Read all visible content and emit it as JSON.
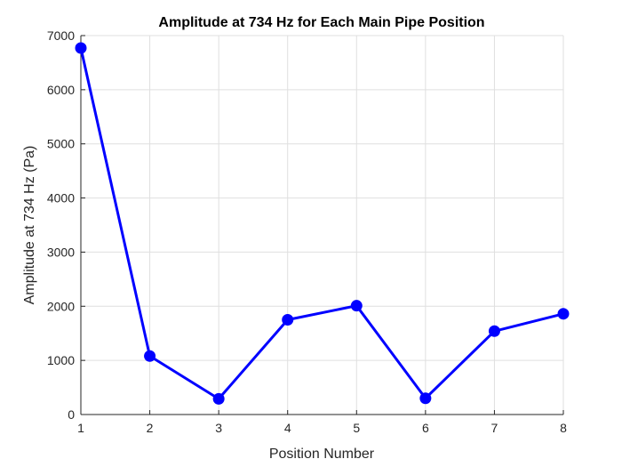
{
  "chart_data": {
    "type": "line",
    "title": "Amplitude at 734 Hz for Each Main Pipe Position",
    "xlabel": "Position Number",
    "ylabel": "Amplitude at 734 Hz (Pa)",
    "x": [
      1,
      2,
      3,
      4,
      5,
      6,
      7,
      8
    ],
    "series": [
      {
        "values": [
          6770,
          1080,
          290,
          1750,
          2010,
          300,
          1540,
          1860
        ],
        "color": "#0000ff",
        "marker": "circle"
      }
    ],
    "xlim": [
      1,
      8
    ],
    "ylim": [
      0,
      7000
    ],
    "xticks": [
      1,
      2,
      3,
      4,
      5,
      6,
      7,
      8
    ],
    "yticks": [
      0,
      1000,
      2000,
      3000,
      4000,
      5000,
      6000,
      7000
    ],
    "grid": true,
    "legend": "none"
  }
}
